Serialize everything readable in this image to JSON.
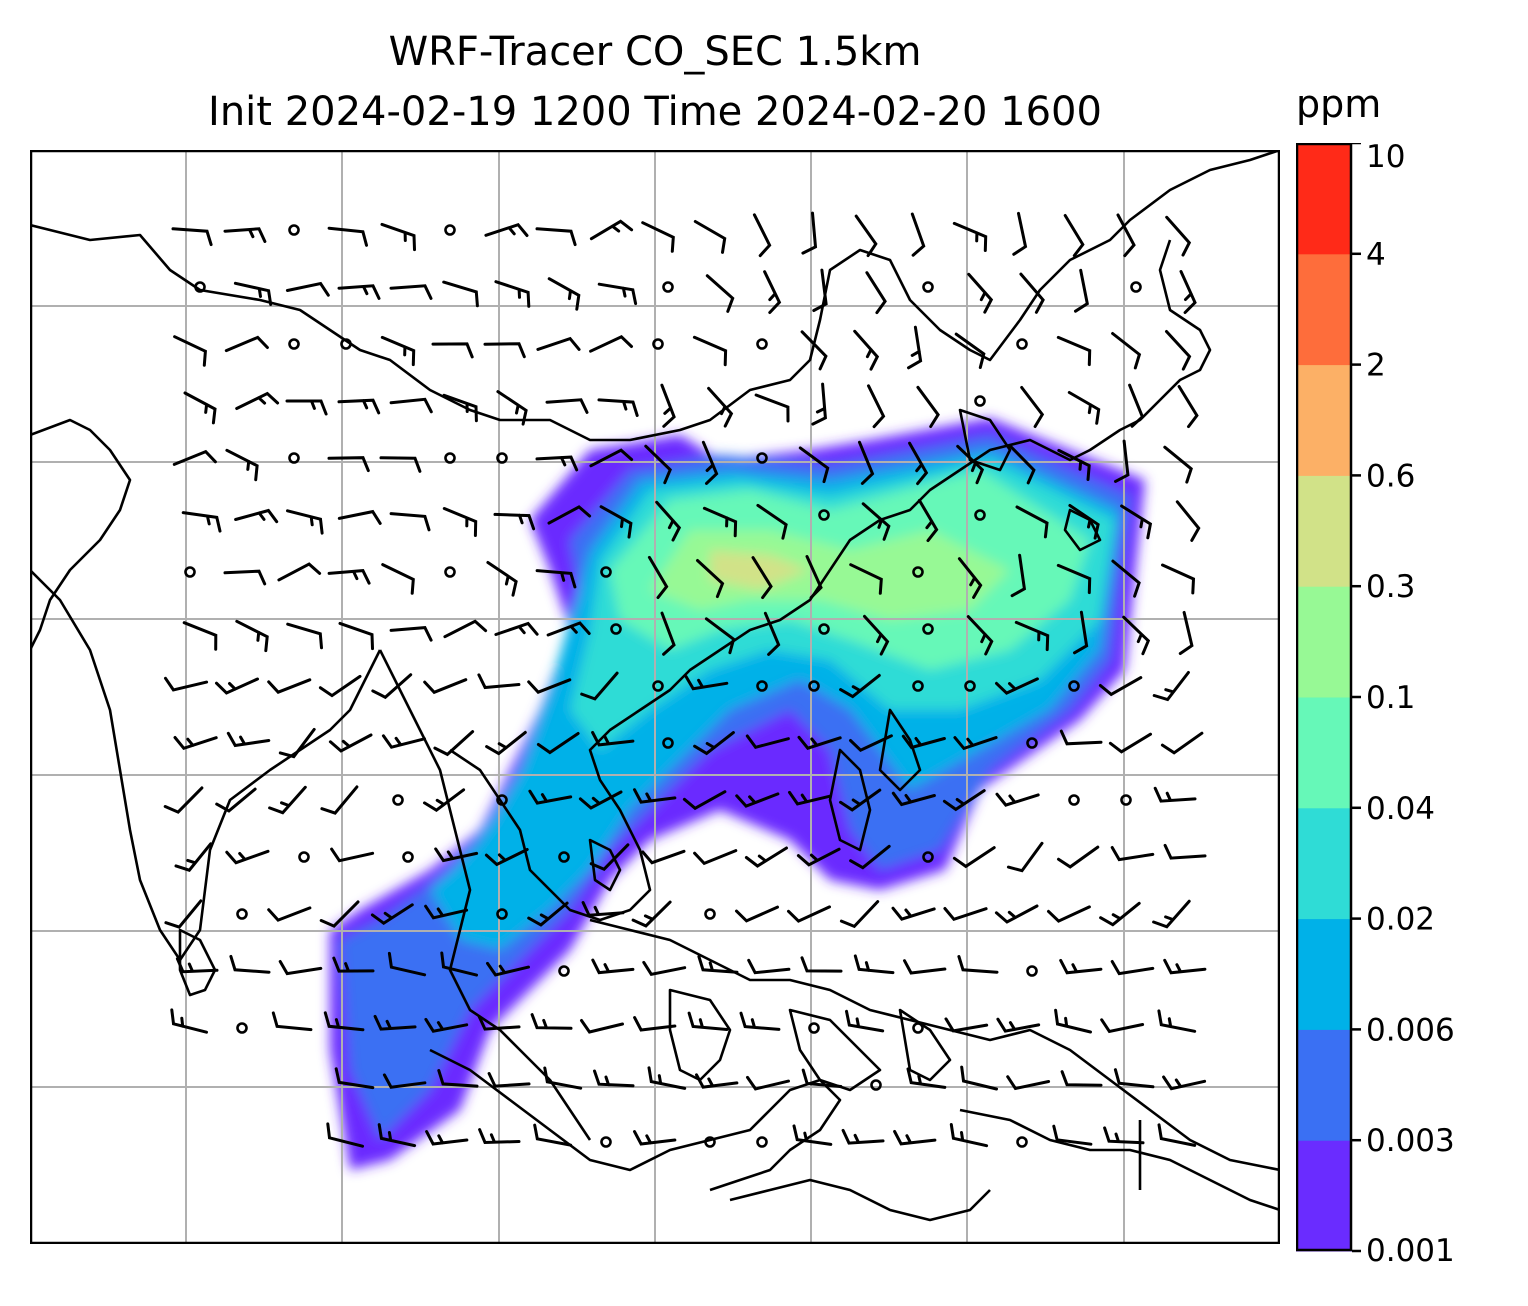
{
  "title": {
    "line1": "WRF-Tracer CO_SEC 1.5km",
    "line2": "Init 2024-02-19 1200 Time 2024-02-20 1600"
  },
  "colorbar": {
    "unit": "ppm",
    "levels": [
      "0.001",
      "0.003",
      "0.006",
      "0.02",
      "0.04",
      "0.1",
      "0.3",
      "0.6",
      "2",
      "4",
      "10"
    ],
    "colors": [
      "#6a2cff",
      "#3a70f3",
      "#00b1e8",
      "#2fdcd6",
      "#66f8b8",
      "#97f995",
      "#d1e288",
      "#fcb066",
      "#fe6d3b",
      "#ff2a18"
    ]
  },
  "map": {
    "gridlines": "on",
    "coastline_color": "#000000",
    "grid_color": "#b0b0b0",
    "overlay": "wind barbs"
  }
}
